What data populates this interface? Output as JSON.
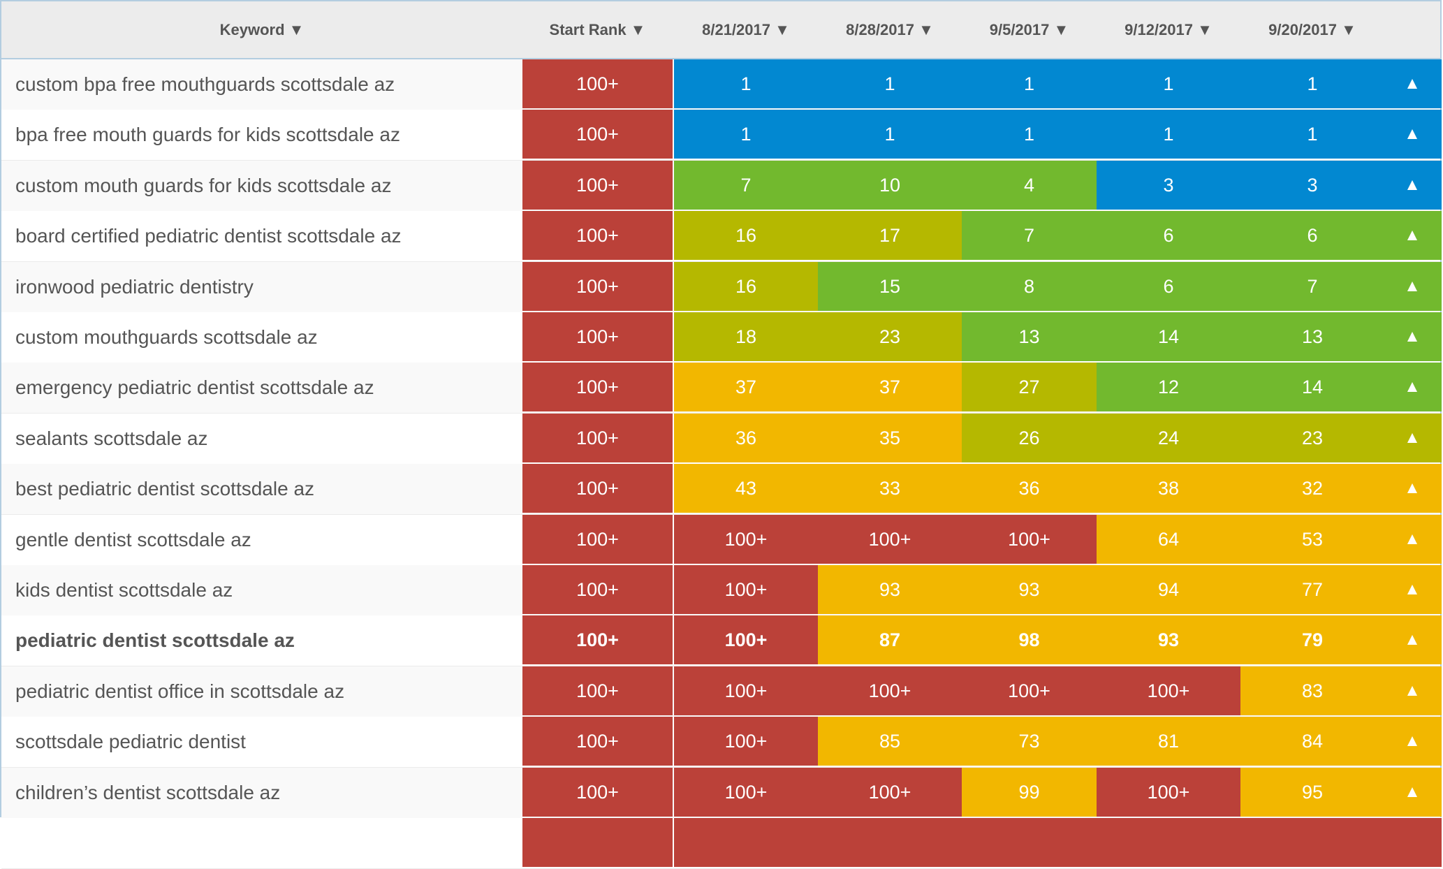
{
  "palette": {
    "top3": "#0288d1",
    "top15": "#72b92e",
    "top30": "#b5b800",
    "top99": "#f2b700",
    "unranked": "#bb4139"
  },
  "header": {
    "keyword": "Keyword ▼",
    "start_rank": "Start Rank ▼",
    "dates": [
      "8/21/2017 ▼",
      "8/28/2017 ▼",
      "9/5/2017 ▼",
      "9/12/2017 ▼",
      "9/20/2017 ▼"
    ]
  },
  "trend_icon": "▲",
  "rows": [
    {
      "keyword": "custom bpa free mouthguards scottsdale az",
      "start": "100+",
      "ranks": [
        "1",
        "1",
        "1",
        "1",
        "1"
      ],
      "trend": "up"
    },
    {
      "keyword": "bpa free mouth guards for kids scottsdale az",
      "start": "100+",
      "ranks": [
        "1",
        "1",
        "1",
        "1",
        "1"
      ],
      "trend": "up"
    },
    {
      "keyword": "custom mouth guards for kids scottsdale az",
      "start": "100+",
      "ranks": [
        "7",
        "10",
        "4",
        "3",
        "3"
      ],
      "trend": "up"
    },
    {
      "keyword": "board certified pediatric dentist scottsdale az",
      "start": "100+",
      "ranks": [
        "16",
        "17",
        "7",
        "6",
        "6"
      ],
      "trend": "up"
    },
    {
      "keyword": "ironwood pediatric dentistry",
      "start": "100+",
      "ranks": [
        "16",
        "15",
        "8",
        "6",
        "7"
      ],
      "trend": "up"
    },
    {
      "keyword": "custom mouthguards scottsdale az",
      "start": "100+",
      "ranks": [
        "18",
        "23",
        "13",
        "14",
        "13"
      ],
      "trend": "up"
    },
    {
      "keyword": "emergency pediatric dentist scottsdale az",
      "start": "100+",
      "ranks": [
        "37",
        "37",
        "27",
        "12",
        "14"
      ],
      "trend": "up"
    },
    {
      "keyword": "sealants scottsdale az",
      "start": "100+",
      "ranks": [
        "36",
        "35",
        "26",
        "24",
        "23"
      ],
      "trend": "up"
    },
    {
      "keyword": "best pediatric dentist scottsdale az",
      "start": "100+",
      "ranks": [
        "43",
        "33",
        "36",
        "38",
        "32"
      ],
      "trend": "up"
    },
    {
      "keyword": "gentle dentist scottsdale az",
      "start": "100+",
      "ranks": [
        "100+",
        "100+",
        "100+",
        "64",
        "53"
      ],
      "trend": "up"
    },
    {
      "keyword": "kids dentist scottsdale az",
      "start": "100+",
      "ranks": [
        "100+",
        "93",
        "93",
        "94",
        "77"
      ],
      "trend": "up"
    },
    {
      "keyword": "pediatric dentist scottsdale az",
      "start": "100+",
      "ranks": [
        "100+",
        "87",
        "98",
        "93",
        "79"
      ],
      "trend": "up",
      "bold": true
    },
    {
      "keyword": "pediatric dentist office in scottsdale az",
      "start": "100+",
      "ranks": [
        "100+",
        "100+",
        "100+",
        "100+",
        "83"
      ],
      "trend": "up"
    },
    {
      "keyword": "scottsdale pediatric dentist",
      "start": "100+",
      "ranks": [
        "100+",
        "85",
        "73",
        "81",
        "84"
      ],
      "trend": "up"
    },
    {
      "keyword": "children’s dentist scottsdale az",
      "start": "100+",
      "ranks": [
        "100+",
        "100+",
        "99",
        "100+",
        "95"
      ],
      "trend": "up"
    }
  ]
}
